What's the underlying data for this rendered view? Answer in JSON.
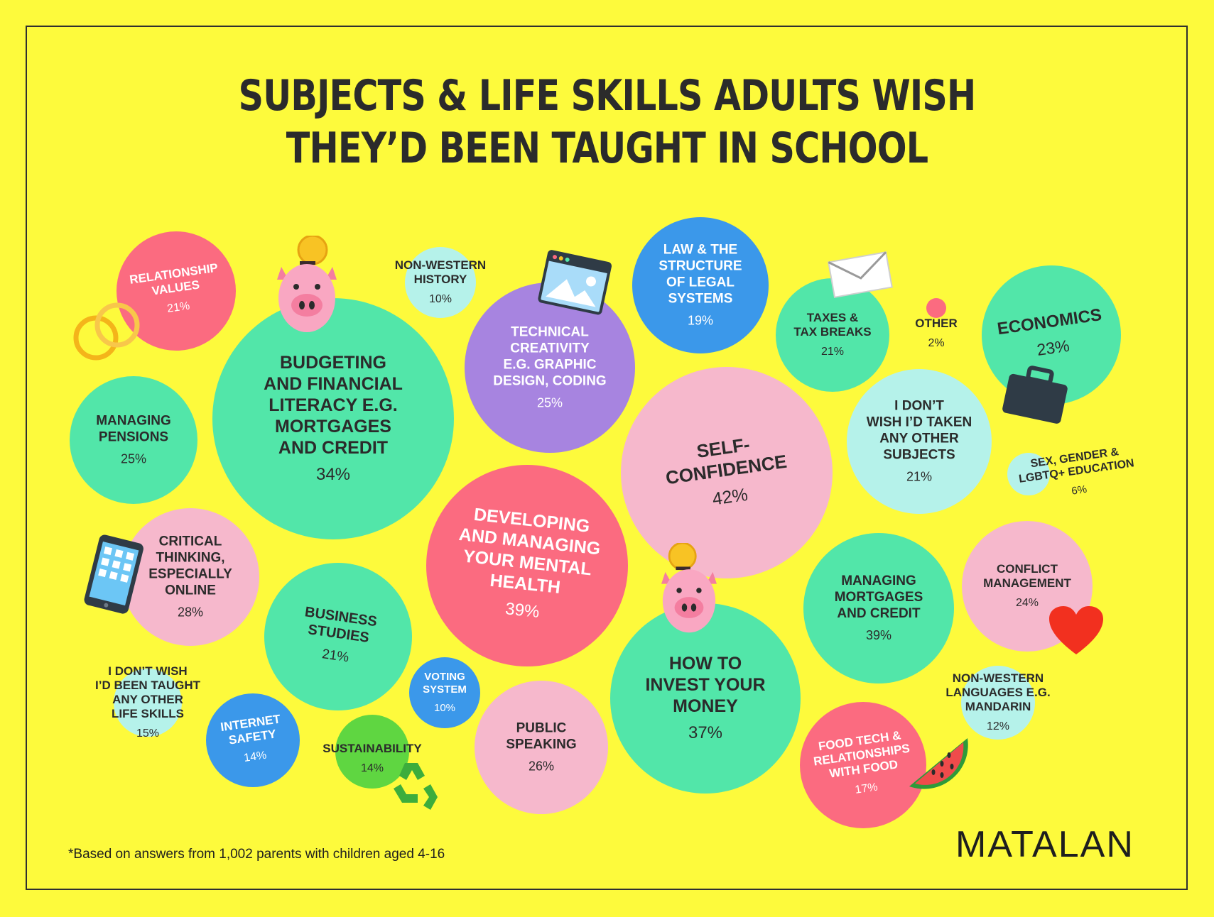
{
  "title": {
    "line1": "SUBJECTS & LIFE SKILLS ADULTS WISH",
    "line2": "THEY’D BEEN TAUGHT IN SCHOOL"
  },
  "footnote": "*Based on answers from 1,002 parents with children aged 4-16",
  "brand": "MATALAN",
  "colors": {
    "background": "#fdfa3c",
    "green": "#52e6a9",
    "pink": "#f6b8cc",
    "red": "#fb6b80",
    "purple": "#a784e0",
    "blue": "#3b98ea",
    "light_blue": "#b5f2ea",
    "lime": "#5fd641"
  },
  "chart_data": {
    "type": "bubble",
    "unit": "%",
    "items": [
      {
        "label": "RELATIONSHIP VALUES",
        "value": 21,
        "color": "red"
      },
      {
        "label": "BUDGETING AND FINANCIAL LITERACY E.G. MORTGAGES AND CREDIT",
        "value": 34,
        "color": "green"
      },
      {
        "label": "NON-WESTERN HISTORY",
        "value": 10,
        "color": "light_blue"
      },
      {
        "label": "TECHNICAL CREATIVITY E.G. GRAPHIC DESIGN, CODING",
        "value": 25,
        "color": "purple"
      },
      {
        "label": "LAW & THE STRUCTURE OF LEGAL SYSTEMS",
        "value": 19,
        "color": "blue"
      },
      {
        "label": "TAXES & TAX BREAKS",
        "value": 21,
        "color": "green"
      },
      {
        "label": "OTHER",
        "value": 2,
        "color": "red"
      },
      {
        "label": "ECONOMICS",
        "value": 23,
        "color": "green"
      },
      {
        "label": "MANAGING PENSIONS",
        "value": 25,
        "color": "green"
      },
      {
        "label": "SELF-CONFIDENCE",
        "value": 42,
        "color": "pink"
      },
      {
        "label": "I DON’T WISH I’D TAKEN ANY OTHER SUBJECTS",
        "value": 21,
        "color": "light_blue"
      },
      {
        "label": "SEX, GENDER & LGBTQ+ EDUCATION",
        "value": 6,
        "color": "light_blue"
      },
      {
        "label": "CRITICAL THINKING, ESPECIALLY ONLINE",
        "value": 28,
        "color": "pink"
      },
      {
        "label": "DEVELOPING AND MANAGING YOUR MENTAL HEALTH",
        "value": 39,
        "color": "red"
      },
      {
        "label": "BUSINESS STUDIES",
        "value": 21,
        "color": "green"
      },
      {
        "label": "MANAGING MORTGAGES AND CREDIT",
        "value": 39,
        "color": "green"
      },
      {
        "label": "CONFLICT MANAGEMENT",
        "value": 24,
        "color": "pink"
      },
      {
        "label": "HOW TO INVEST YOUR MONEY",
        "value": 37,
        "color": "green"
      },
      {
        "label": "I DON’T WISH I’D BEEN TAUGHT ANY OTHER LIFE SKILLS",
        "value": 15,
        "color": "light_blue"
      },
      {
        "label": "INTERNET SAFETY",
        "value": 14,
        "color": "blue"
      },
      {
        "label": "SUSTAINABILITY",
        "value": 14,
        "color": "lime"
      },
      {
        "label": "VOTING SYSTEM",
        "value": 10,
        "color": "blue"
      },
      {
        "label": "PUBLIC SPEAKING",
        "value": 26,
        "color": "pink"
      },
      {
        "label": "NON-WESTERN LANGUAGES E.G. MANDARIN",
        "value": 12,
        "color": "light_blue"
      },
      {
        "label": "FOOD TECH & RELATIONSHIPS WITH FOOD",
        "value": 17,
        "color": "red"
      }
    ]
  }
}
